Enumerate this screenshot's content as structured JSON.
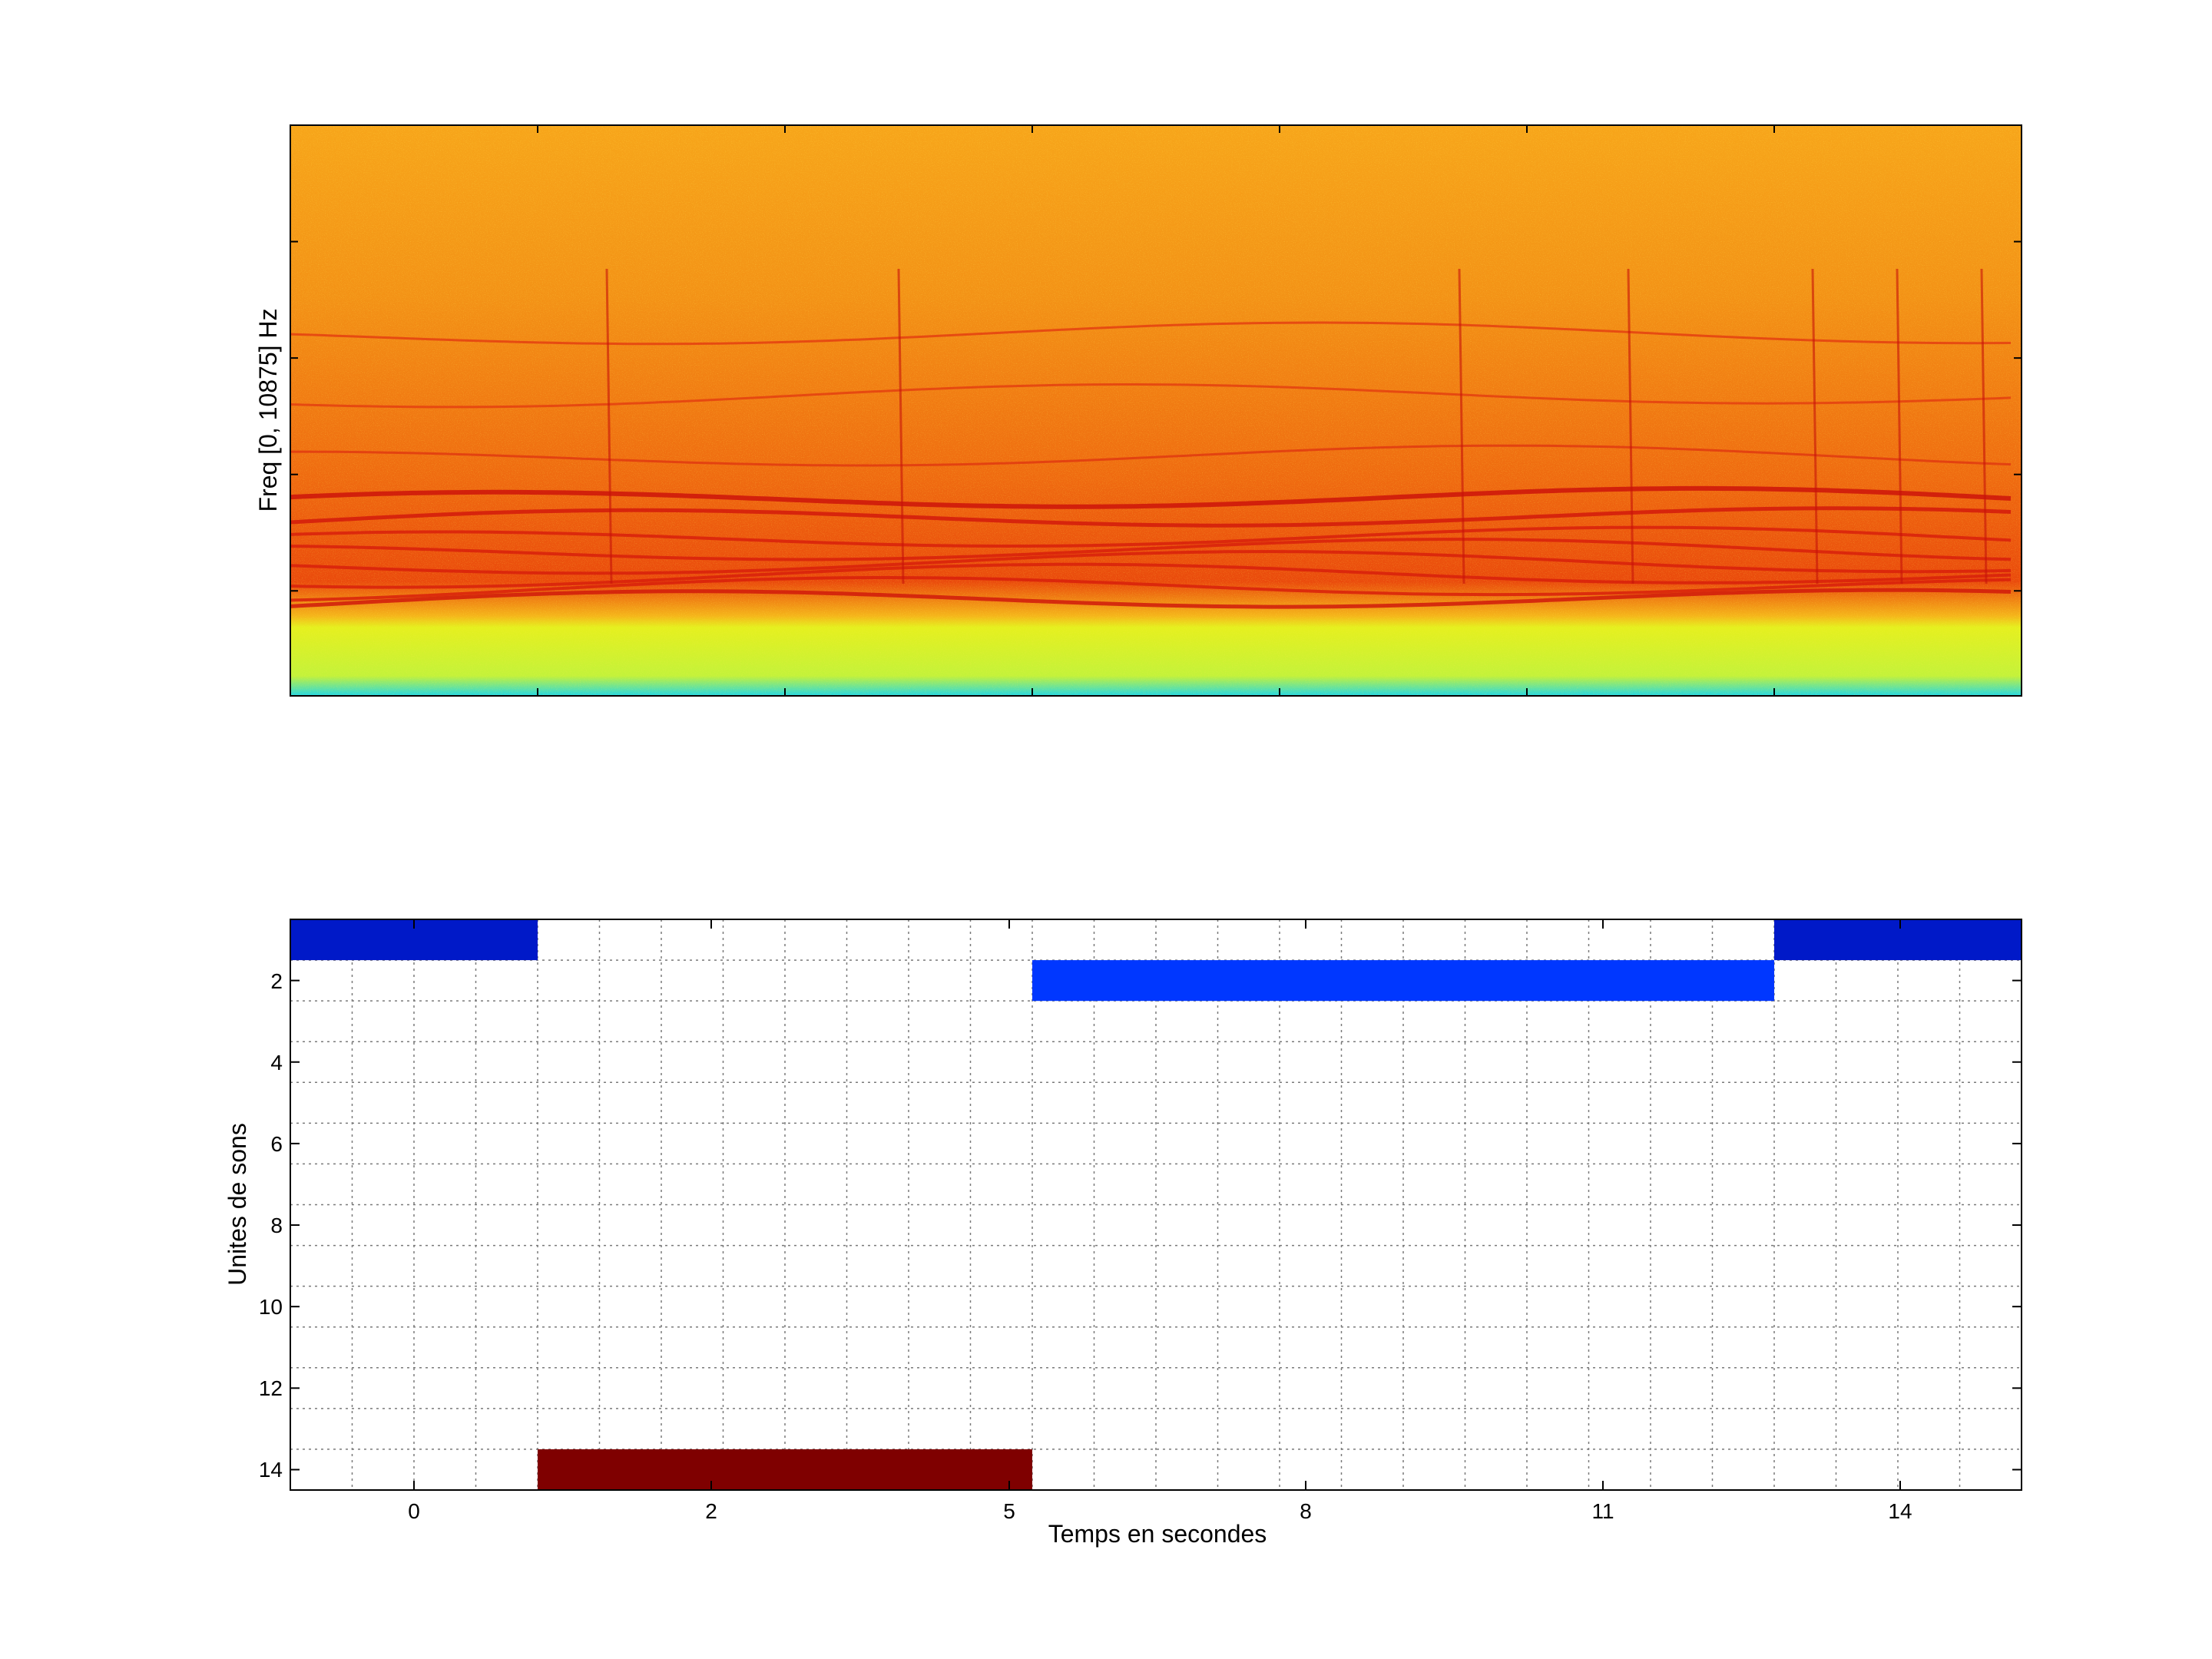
{
  "chart_data": [
    {
      "type": "heatmap",
      "title": "",
      "xlabel": "",
      "ylabel": "Freq [0, 10875] Hz",
      "colormap": "jet",
      "ylim": [
        0,
        10875
      ]
    },
    {
      "type": "bar",
      "xlabel": "Temps en secondes",
      "ylabel": "Unites de sons",
      "xtick_labels": [
        "0",
        "2",
        "5",
        "8",
        "11",
        "14"
      ],
      "ytick_labels": [
        "2",
        "4",
        "6",
        "8",
        "10",
        "12",
        "14"
      ],
      "ylim": [
        0.5,
        14.5
      ],
      "grid": true,
      "segments": [
        {
          "unit": 1,
          "start": 1,
          "end": 5,
          "color": "#0019c8"
        },
        {
          "unit": 14,
          "start": 5,
          "end": 13,
          "color": "#7f0000"
        },
        {
          "unit": 2,
          "start": 13,
          "end": 25,
          "color": "#0037ff"
        },
        {
          "unit": 1,
          "start": 25,
          "end": 29,
          "color": "#0019c8"
        }
      ]
    }
  ]
}
